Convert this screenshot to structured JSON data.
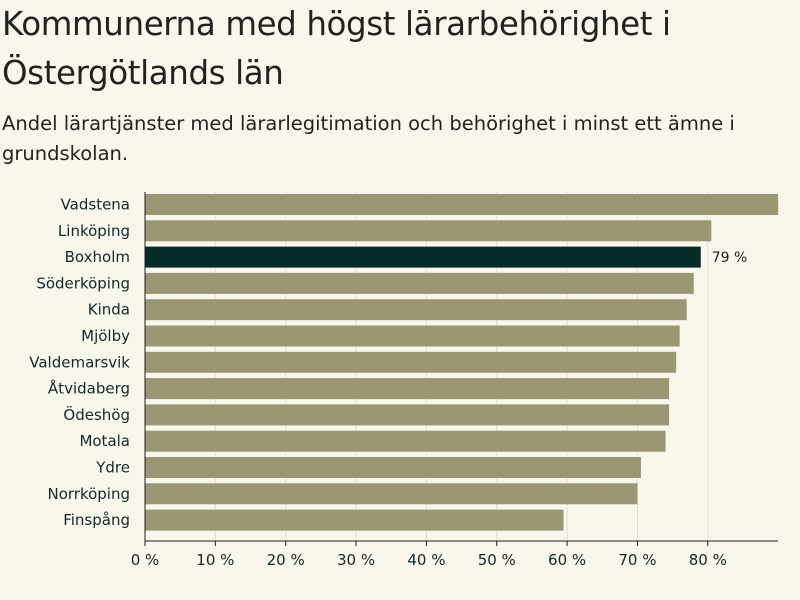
{
  "header": {
    "title": "Kommunerna med högst lärarbehörighet i Östergötlands län",
    "subtitle": "Andel lärartjänster med lärarlegitimation och behörighet i minst ett ämne i grundskolan."
  },
  "colors": {
    "bar": "#9b9674",
    "highlight": "#062b2a",
    "grid": "#e2dfcf",
    "axis": "#1e1e1e",
    "background": "#f9f7ec"
  },
  "chart_data": {
    "type": "bar",
    "orientation": "horizontal",
    "title": "Kommunerna med högst lärarbehörighet i Östergötlands län",
    "subtitle": "Andel lärartjänster med lärarlegitimation och behörighet i minst ett ämne i grundskolan.",
    "categories": [
      "Vadstena",
      "Linköping",
      "Boxholm",
      "Söderköping",
      "Kinda",
      "Mjölby",
      "Valdemarsvik",
      "Åtvidaberg",
      "Ödeshög",
      "Motala",
      "Ydre",
      "Norrköping",
      "Finspång"
    ],
    "values": [
      90,
      80.5,
      79,
      78,
      77,
      76,
      75.5,
      74.5,
      74.5,
      74,
      70.5,
      70,
      59.5
    ],
    "highlight": "Boxholm",
    "highlight_label": "79 %",
    "xlim": [
      0,
      90
    ],
    "ticks": [
      0,
      10,
      20,
      30,
      40,
      50,
      60,
      70,
      80
    ],
    "tick_labels": [
      "0 %",
      "10 %",
      "20 %",
      "30 %",
      "40 %",
      "50 %",
      "60 %",
      "70 %",
      "80 %"
    ],
    "xlabel": "",
    "ylabel": "",
    "grid": true
  }
}
